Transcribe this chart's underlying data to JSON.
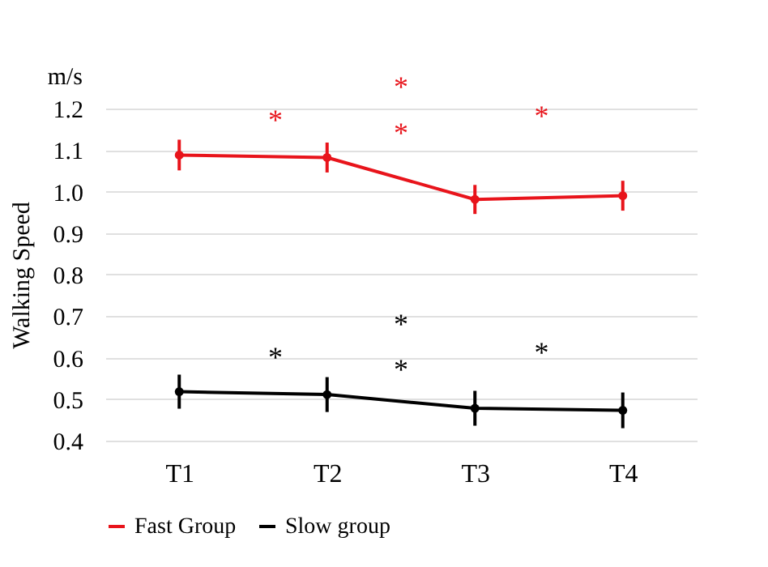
{
  "chart_data": {
    "type": "line",
    "ylabel": "Walking Speed",
    "categories": [
      "T1",
      "T2",
      "T3",
      "T4"
    ],
    "series": [
      {
        "name": "Fast Group",
        "color": "#e8141b",
        "values": [
          1.088,
          1.082,
          0.981,
          0.99
        ],
        "errors": [
          0.037,
          0.036,
          0.035,
          0.036
        ]
      },
      {
        "name": "Slow group",
        "color": "#000000",
        "values": [
          0.518,
          0.511,
          0.478,
          0.473
        ],
        "errors": [
          0.041,
          0.042,
          0.042,
          0.043
        ]
      }
    ],
    "ylim": [
      0.4,
      1.2
    ],
    "yticks": [
      0.4,
      0.5,
      0.6,
      0.7,
      0.8,
      0.9,
      {
        "value": 1,
        "label": "1.0"
      },
      1.1,
      1.2
    ],
    "grid": "y",
    "legend": "bottom",
    "marker": "circle",
    "line_style": "solid",
    "annotations": [
      "m/s",
      "*",
      "*",
      "*",
      "*",
      "*",
      "*",
      "*",
      "*"
    ]
  }
}
